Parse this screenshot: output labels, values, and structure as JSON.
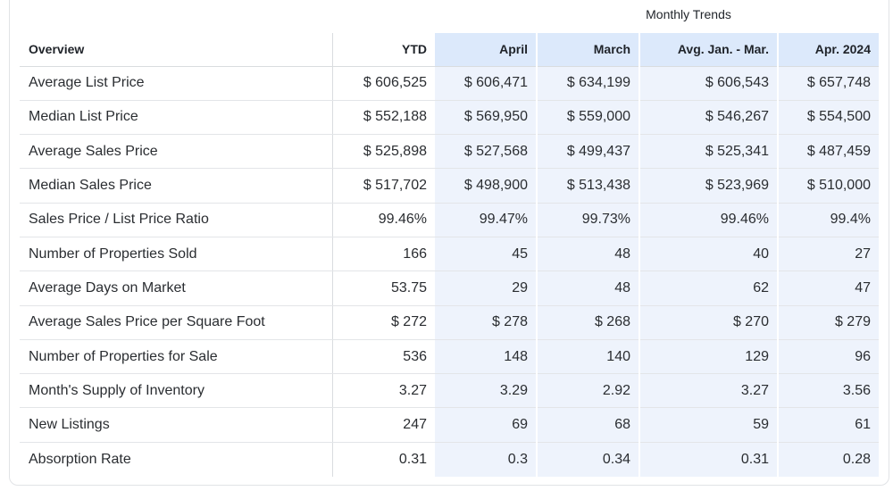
{
  "group_header": "Monthly Trends",
  "columns": {
    "label": "Overview",
    "ytd": "YTD",
    "april": "April",
    "march": "March",
    "avg": "Avg. Jan. - Mar.",
    "prev": "Apr. 2024"
  },
  "rows": [
    {
      "label": "Average List Price",
      "ytd": "$ 606,525",
      "april": "$ 606,471",
      "march": "$ 634,199",
      "avg": "$ 606,543",
      "prev": "$ 657,748"
    },
    {
      "label": "Median List Price",
      "ytd": "$ 552,188",
      "april": "$ 569,950",
      "march": "$ 559,000",
      "avg": "$ 546,267",
      "prev": "$ 554,500"
    },
    {
      "label": "Average Sales Price",
      "ytd": "$ 525,898",
      "april": "$ 527,568",
      "march": "$ 499,437",
      "avg": "$ 525,341",
      "prev": "$ 487,459"
    },
    {
      "label": "Median Sales Price",
      "ytd": "$ 517,702",
      "april": "$ 498,900",
      "march": "$ 513,438",
      "avg": "$ 523,969",
      "prev": "$ 510,000"
    },
    {
      "label": "Sales Price / List Price Ratio",
      "ytd": "99.46%",
      "april": "99.47%",
      "march": "99.73%",
      "avg": "99.46%",
      "prev": "99.4%"
    },
    {
      "label": "Number of Properties Sold",
      "ytd": "166",
      "april": "45",
      "march": "48",
      "avg": "40",
      "prev": "27"
    },
    {
      "label": "Average Days on Market",
      "ytd": "53.75",
      "april": "29",
      "march": "48",
      "avg": "62",
      "prev": "47"
    },
    {
      "label": "Average Sales Price per Square Foot",
      "ytd": "$ 272",
      "april": "$ 278",
      "march": "$ 268",
      "avg": "$ 270",
      "prev": "$ 279"
    },
    {
      "label": "Number of Properties for Sale",
      "ytd": "536",
      "april": "148",
      "march": "140",
      "avg": "129",
      "prev": "96"
    },
    {
      "label": "Month's Supply of Inventory",
      "ytd": "3.27",
      "april": "3.29",
      "march": "2.92",
      "avg": "3.27",
      "prev": "3.56"
    },
    {
      "label": "New Listings",
      "ytd": "247",
      "april": "69",
      "march": "68",
      "avg": "59",
      "prev": "61"
    },
    {
      "label": "Absorption Rate",
      "ytd": "0.31",
      "april": "0.3",
      "march": "0.34",
      "avg": "0.31",
      "prev": "0.28"
    }
  ]
}
